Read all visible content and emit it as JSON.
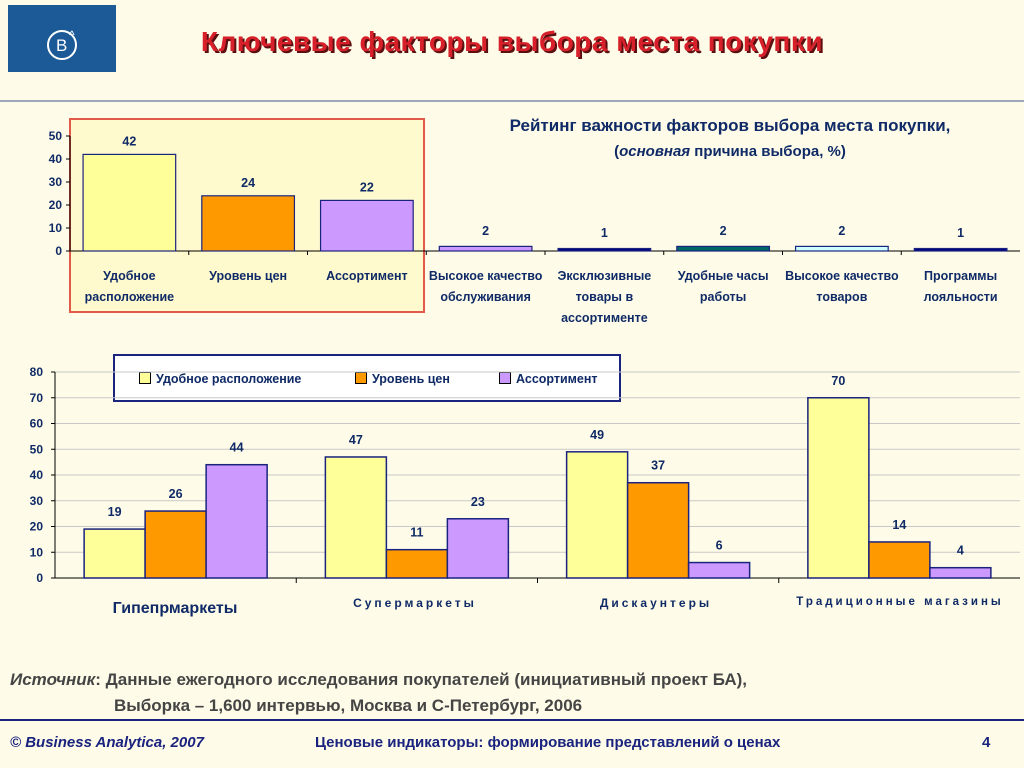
{
  "header": {
    "title": "Ключевые факторы выбора места покупки"
  },
  "chart1": {
    "title": "Рейтинг важности факторов выбора места покупки,",
    "subtitle_open": "(",
    "subtitle_italic": "основная",
    "subtitle_rest": " причина выбора, %)"
  },
  "chart2": {
    "groups": [
      "Гипепрмаркеты",
      "Супермаркеты",
      "Дискаунтеры",
      "Традиционные магазины"
    ]
  },
  "source": {
    "label": "Источник",
    "line1": ": Данные ежегодного исследования покупателей (инициативный проект БА),",
    "line2": "Выборка – 1,600 интервью, Москва и С-Петербург, 2006"
  },
  "footer": {
    "copyright": "© Business Analytica, 2007",
    "center": "Ценовые индикаторы: формирование представлений о ценах",
    "page": "4"
  },
  "chart_data": [
    {
      "type": "bar",
      "title": "Рейтинг важности факторов выбора места покупки,",
      "subtitle": "(основная причина выбора, %)",
      "categories": [
        "Удобное расположение",
        "Уровень цен",
        "Ассортимент",
        "Высокое качество обслуживания",
        "Эксклюзивные товары в ассортименте",
        "Удобные часы работы",
        "Высокое качество товаров",
        "Программы лояльности"
      ],
      "values": [
        42,
        24,
        22,
        2,
        1,
        2,
        2,
        1
      ],
      "colors": [
        "#FFFF99",
        "#FF9900",
        "#CC99FF",
        "#CC99FF",
        "#000080",
        "#006666",
        "#CCFFFF",
        "#000080"
      ],
      "yticks": [
        0,
        10,
        20,
        30,
        40,
        50
      ],
      "ylim": [
        0,
        50
      ]
    },
    {
      "type": "bar",
      "categories": [
        "Гипепрмаркеты",
        "Супермаркеты",
        "Дискаунтеры",
        "Традиционные магазины"
      ],
      "series": [
        {
          "name": "Удобное расположение",
          "color": "#FFFF99",
          "values": [
            19,
            47,
            49,
            70
          ]
        },
        {
          "name": "Уровень цен",
          "color": "#FF9900",
          "values": [
            26,
            11,
            37,
            14
          ]
        },
        {
          "name": "Ассортимент",
          "color": "#CC99FF",
          "values": [
            44,
            23,
            6,
            4
          ]
        }
      ],
      "yticks": [
        0,
        10,
        20,
        30,
        40,
        50,
        60,
        70,
        80
      ],
      "ylim": [
        0,
        80
      ],
      "legend": "top"
    }
  ]
}
